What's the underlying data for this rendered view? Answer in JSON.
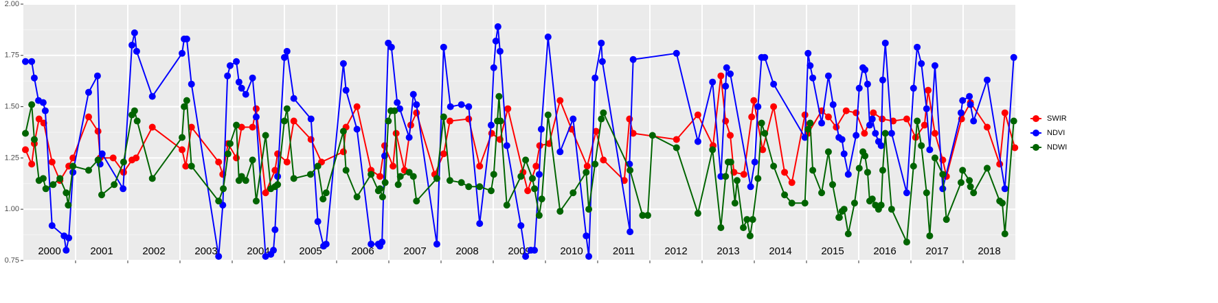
{
  "chart_data": {
    "type": "line",
    "annotations": [
      "2000",
      "2001",
      "2002",
      "2003",
      "2004",
      "2005",
      "2006",
      "2007",
      "2008",
      "2009",
      "2010",
      "2011",
      "2012",
      "2013",
      "2014",
      "2015",
      "2016",
      "2017",
      "2018"
    ],
    "xlim": [
      2000,
      2019
    ],
    "xticks": [
      2001,
      2002,
      2003,
      2004,
      2005,
      2006,
      2007,
      2008,
      2009,
      2010,
      2011,
      2012,
      2013,
      2014,
      2015,
      2016,
      2017,
      2018
    ],
    "ylim": [
      0.75,
      2.0
    ],
    "yticks": [
      0.75,
      {
        "value": 1.0,
        "label": "1.00"
      },
      1.25,
      {
        "value": 1.5,
        "label": "1.50"
      },
      1.75,
      {
        "value": 2.0,
        "label": "2.00"
      }
    ],
    "grid": true,
    "legend": "right",
    "series": [
      {
        "name": "SWIR",
        "color": "#ff0000",
        "x": [
          2000.04,
          2000.16,
          2000.21,
          2000.3,
          2000.39,
          2000.55,
          2000.7,
          2000.87,
          2000.95,
          2001.25,
          2001.43,
          2001.47,
          2001.72,
          2001.92,
          2002.08,
          2002.16,
          2002.47,
          2003.04,
          2003.11,
          2003.22,
          2003.74,
          2003.82,
          2003.92,
          2004.08,
          2004.18,
          2004.39,
          2004.46,
          2004.64,
          2004.82,
          2004.87,
          2005.05,
          2005.18,
          2005.51,
          2005.71,
          2006.13,
          2006.18,
          2006.39,
          2006.66,
          2006.83,
          2006.92,
          2007.08,
          2007.14,
          2007.3,
          2007.42,
          2007.53,
          2007.88,
          2008.05,
          2008.17,
          2008.53,
          2008.74,
          2008.97,
          2009.13,
          2009.28,
          2009.57,
          2009.66,
          2009.82,
          2009.89,
          2010.07,
          2010.28,
          2010.5,
          2010.8,
          2010.97,
          2011.11,
          2011.51,
          2011.61,
          2011.68,
          2012.51,
          2012.92,
          2013.21,
          2013.36,
          2013.45,
          2013.54,
          2013.61,
          2013.8,
          2013.95,
          2013.99,
          2014.16,
          2014.37,
          2014.58,
          2014.72,
          2014.97,
          2015.03,
          2015.29,
          2015.42,
          2015.57,
          2015.76,
          2015.95,
          2016.11,
          2016.28,
          2016.45,
          2016.66,
          2016.92,
          2017.09,
          2017.26,
          2017.33,
          2017.46,
          2017.61,
          2017.68,
          2017.97,
          2018.14,
          2018.46,
          2018.7,
          2018.8,
          2018.99
        ],
        "values": [
          1.29,
          1.22,
          1.32,
          1.44,
          1.42,
          1.23,
          1.14,
          1.21,
          1.25,
          1.45,
          1.38,
          1.25,
          1.25,
          1.18,
          1.24,
          1.25,
          1.4,
          1.29,
          1.21,
          1.4,
          1.23,
          1.17,
          1.32,
          1.25,
          1.4,
          1.4,
          1.49,
          1.08,
          1.19,
          1.27,
          1.23,
          1.43,
          1.34,
          1.23,
          1.28,
          1.4,
          1.5,
          1.19,
          1.16,
          1.31,
          1.21,
          1.37,
          1.19,
          1.41,
          1.47,
          1.17,
          1.27,
          1.43,
          1.44,
          1.21,
          1.37,
          1.34,
          1.49,
          1.18,
          1.09,
          1.21,
          1.31,
          1.32,
          1.53,
          1.39,
          1.21,
          1.38,
          1.24,
          1.14,
          1.44,
          1.37,
          1.34,
          1.46,
          1.31,
          1.65,
          1.43,
          1.36,
          1.18,
          1.17,
          1.45,
          1.53,
          1.29,
          1.5,
          1.18,
          1.13,
          1.46,
          1.37,
          1.48,
          1.45,
          1.4,
          1.48,
          1.47,
          1.37,
          1.47,
          1.44,
          1.43,
          1.44,
          1.35,
          1.41,
          1.58,
          1.37,
          1.24,
          1.16,
          1.44,
          1.52,
          1.4,
          1.22,
          1.47,
          1.3
        ]
      },
      {
        "name": "NDVI",
        "color": "#0000ff",
        "x": [
          2000.04,
          2000.16,
          2000.21,
          2000.29,
          2000.38,
          2000.42,
          2000.55,
          2000.78,
          2000.82,
          2000.87,
          2000.95,
          2001.25,
          2001.42,
          2001.47,
          2001.51,
          2001.91,
          2002.08,
          2002.13,
          2002.17,
          2002.47,
          2003.04,
          2003.08,
          2003.13,
          2003.22,
          2003.74,
          2003.82,
          2003.91,
          2003.96,
          2004.08,
          2004.13,
          2004.18,
          2004.26,
          2004.39,
          2004.46,
          2004.64,
          2004.74,
          2004.79,
          2004.82,
          2004.87,
          2005.0,
          2005.05,
          2005.18,
          2005.51,
          2005.64,
          2005.75,
          2005.8,
          2006.13,
          2006.18,
          2006.39,
          2006.66,
          2006.8,
          2006.83,
          2006.87,
          2006.92,
          2006.99,
          2007.05,
          2007.16,
          2007.21,
          2007.39,
          2007.47,
          2007.53,
          2007.92,
          2008.05,
          2008.18,
          2008.39,
          2008.53,
          2008.74,
          2008.96,
          2009.01,
          2009.05,
          2009.09,
          2009.13,
          2009.26,
          2009.53,
          2009.62,
          2009.72,
          2009.79,
          2009.88,
          2009.92,
          2010.05,
          2010.28,
          2010.53,
          2010.78,
          2010.83,
          2010.95,
          2011.07,
          2011.09,
          2011.62,
          2011.61,
          2011.68,
          2012.51,
          2012.92,
          2013.2,
          2013.36,
          2013.45,
          2013.47,
          2013.54,
          2013.93,
          2014.01,
          2014.07,
          2014.14,
          2014.2,
          2014.37,
          2014.97,
          2015.03,
          2015.07,
          2015.12,
          2015.29,
          2015.42,
          2015.51,
          2015.62,
          2015.68,
          2015.72,
          2015.8,
          2015.95,
          2016.01,
          2016.08,
          2016.12,
          2016.17,
          2016.21,
          2016.26,
          2016.32,
          2016.38,
          2016.43,
          2016.46,
          2016.51,
          2016.63,
          2016.92,
          2017.05,
          2017.12,
          2017.2,
          2017.3,
          2017.36,
          2017.46,
          2017.61,
          2017.96,
          2017.99,
          2018.12,
          2018.14,
          2018.2,
          2018.46,
          2018.8,
          2018.97
        ],
        "values": [
          1.72,
          1.72,
          1.64,
          1.53,
          1.52,
          1.48,
          0.92,
          0.87,
          0.8,
          0.86,
          1.18,
          1.57,
          1.65,
          1.22,
          1.27,
          1.1,
          1.8,
          1.86,
          1.77,
          1.55,
          1.76,
          1.83,
          1.83,
          1.61,
          0.77,
          1.02,
          1.65,
          1.7,
          1.72,
          1.62,
          1.59,
          1.56,
          1.64,
          1.45,
          0.77,
          0.78,
          0.8,
          0.9,
          1.16,
          1.74,
          1.77,
          1.54,
          1.44,
          0.94,
          0.82,
          0.83,
          1.71,
          1.58,
          1.39,
          0.83,
          0.83,
          0.82,
          0.84,
          1.26,
          1.81,
          1.79,
          1.52,
          1.49,
          1.35,
          1.56,
          1.51,
          0.83,
          1.79,
          1.5,
          1.51,
          1.5,
          0.93,
          1.41,
          1.69,
          1.82,
          1.89,
          1.77,
          1.31,
          0.92,
          0.77,
          0.8,
          0.8,
          1.17,
          1.39,
          1.84,
          1.28,
          1.44,
          0.87,
          0.77,
          1.64,
          1.81,
          1.72,
          0.89,
          1.22,
          1.73,
          1.76,
          1.33,
          1.62,
          1.16,
          1.6,
          1.69,
          1.66,
          1.11,
          1.23,
          1.5,
          1.74,
          1.74,
          1.61,
          1.35,
          1.76,
          1.7,
          1.64,
          1.42,
          1.65,
          1.51,
          1.35,
          1.34,
          1.27,
          1.17,
          1.36,
          1.59,
          1.69,
          1.68,
          1.61,
          1.41,
          1.44,
          1.37,
          1.33,
          1.31,
          1.63,
          1.81,
          1.37,
          1.08,
          1.59,
          1.79,
          1.71,
          1.49,
          1.29,
          1.7,
          1.1,
          1.47,
          1.53,
          1.55,
          1.51,
          1.43,
          1.63,
          1.1,
          1.74
        ]
      },
      {
        "name": "NDWI",
        "color": "#006400",
        "x": [
          2000.04,
          2000.16,
          2000.21,
          2000.3,
          2000.38,
          2000.43,
          2000.57,
          2000.7,
          2000.82,
          2000.86,
          2000.95,
          2001.25,
          2001.43,
          2001.5,
          2001.74,
          2001.92,
          2002.08,
          2002.13,
          2002.18,
          2002.47,
          2003.04,
          2003.08,
          2003.13,
          2003.22,
          2003.74,
          2003.83,
          2003.92,
          2003.96,
          2004.08,
          2004.13,
          2004.18,
          2004.26,
          2004.39,
          2004.46,
          2004.64,
          2004.74,
          2004.82,
          2004.87,
          2005.0,
          2005.05,
          2005.18,
          2005.5,
          2005.64,
          2005.74,
          2005.8,
          2006.13,
          2006.18,
          2006.39,
          2006.66,
          2006.8,
          2006.83,
          2006.88,
          2006.93,
          2006.99,
          2007.04,
          2007.11,
          2007.18,
          2007.22,
          2007.39,
          2007.47,
          2007.53,
          2007.92,
          2008.05,
          2008.17,
          2008.39,
          2008.53,
          2008.74,
          2008.96,
          2009.01,
          2009.08,
          2009.11,
          2009.14,
          2009.26,
          2009.53,
          2009.62,
          2009.75,
          2009.79,
          2009.88,
          2009.93,
          2010.05,
          2010.28,
          2010.53,
          2010.78,
          2010.83,
          2010.95,
          2011.07,
          2011.11,
          2011.62,
          2011.86,
          2011.96,
          2012.05,
          2012.51,
          2012.92,
          2013.2,
          2013.36,
          2013.45,
          2013.5,
          2013.55,
          2013.63,
          2013.67,
          2013.79,
          2013.86,
          2013.92,
          2013.97,
          2014.07,
          2014.14,
          2014.2,
          2014.37,
          2014.58,
          2014.72,
          2014.97,
          2015.03,
          2015.07,
          2015.12,
          2015.29,
          2015.42,
          2015.5,
          2015.62,
          2015.63,
          2015.68,
          2015.72,
          2015.8,
          2015.92,
          2016.01,
          2016.08,
          2016.12,
          2016.17,
          2016.21,
          2016.26,
          2016.32,
          2016.38,
          2016.43,
          2016.46,
          2016.51,
          2016.63,
          2016.92,
          2017.05,
          2017.12,
          2017.2,
          2017.3,
          2017.36,
          2017.46,
          2017.61,
          2017.68,
          2017.96,
          2017.99,
          2018.12,
          2018.14,
          2018.2,
          2018.46,
          2018.7,
          2018.75,
          2018.8,
          2018.97
        ],
        "values": [
          1.37,
          1.51,
          1.34,
          1.14,
          1.15,
          1.1,
          1.12,
          1.15,
          1.08,
          1.02,
          1.21,
          1.19,
          1.24,
          1.07,
          1.12,
          1.23,
          1.46,
          1.48,
          1.43,
          1.15,
          1.35,
          1.5,
          1.53,
          1.21,
          1.04,
          1.1,
          1.27,
          1.32,
          1.41,
          1.14,
          1.16,
          1.14,
          1.24,
          1.04,
          1.36,
          1.1,
          1.11,
          1.12,
          1.43,
          1.49,
          1.15,
          1.17,
          1.21,
          1.05,
          1.08,
          1.38,
          1.19,
          1.06,
          1.17,
          1.09,
          1.1,
          1.06,
          1.13,
          1.43,
          1.48,
          1.48,
          1.12,
          1.16,
          1.18,
          1.16,
          1.04,
          1.15,
          1.45,
          1.14,
          1.13,
          1.11,
          1.11,
          1.09,
          1.17,
          1.43,
          1.55,
          1.43,
          1.02,
          1.16,
          1.24,
          1.15,
          1.1,
          0.97,
          1.05,
          1.46,
          0.99,
          1.08,
          1.18,
          1.0,
          1.22,
          1.44,
          1.47,
          1.19,
          0.97,
          0.97,
          1.36,
          1.3,
          0.98,
          1.29,
          0.91,
          1.16,
          1.23,
          1.23,
          1.03,
          1.14,
          0.91,
          0.95,
          0.87,
          0.95,
          1.15,
          1.42,
          1.37,
          1.21,
          1.07,
          1.03,
          1.03,
          1.39,
          1.42,
          1.19,
          1.08,
          1.28,
          1.12,
          0.96,
          0.96,
          0.99,
          1.0,
          0.88,
          1.03,
          1.2,
          1.28,
          1.26,
          1.18,
          1.04,
          1.05,
          1.02,
          1.0,
          1.02,
          1.19,
          1.37,
          1.0,
          0.84,
          1.21,
          1.43,
          1.31,
          1.08,
          0.87,
          1.25,
          1.17,
          0.95,
          1.13,
          1.19,
          1.14,
          1.11,
          1.08,
          1.2,
          1.04,
          1.03,
          0.88,
          1.43
        ]
      }
    ]
  }
}
